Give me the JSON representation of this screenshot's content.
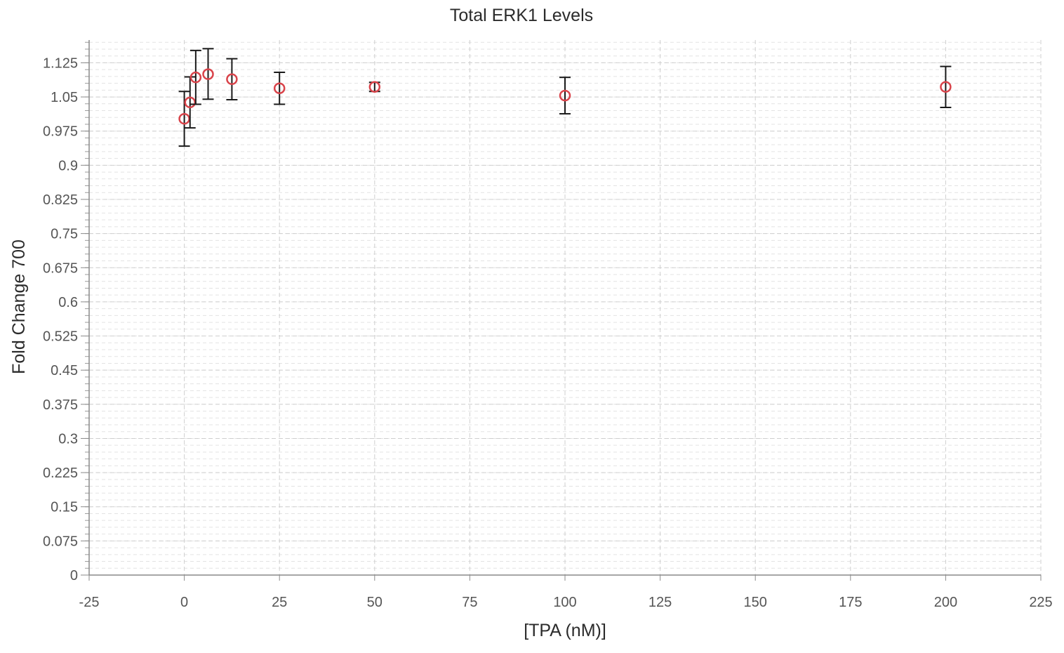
{
  "chart_data": {
    "type": "scatter",
    "title": "Total ERK1 Levels",
    "xlabel": "[TPA (nM)]",
    "ylabel": "Fold Change 700",
    "xlim": [
      -25,
      225
    ],
    "ylim": [
      0,
      1.175
    ],
    "x_ticks": [
      "-25",
      "0",
      "25",
      "50",
      "75",
      "100",
      "125",
      "150",
      "175",
      "200",
      "225"
    ],
    "x_tick_values": [
      -25,
      0,
      25,
      50,
      75,
      100,
      125,
      150,
      175,
      200,
      225
    ],
    "y_ticks": [
      "0",
      "0.075",
      "0.15",
      "0.225",
      "0.3",
      "0.375",
      "0.45",
      "0.525",
      "0.6",
      "0.675",
      "0.75",
      "0.825",
      "0.9",
      "0.975",
      "1.05",
      "1.125"
    ],
    "y_tick_values": [
      0,
      0.075,
      0.15,
      0.225,
      0.3,
      0.375,
      0.45,
      0.525,
      0.6,
      0.675,
      0.75,
      0.825,
      0.9,
      0.975,
      1.05,
      1.125
    ],
    "grid": true,
    "marker_color": "#d9434a",
    "errorbar_color": "#1a1a1a",
    "series": [
      {
        "points": [
          {
            "x": 0,
            "y": 1.002,
            "err_low": 0.942,
            "err_high": 1.062
          },
          {
            "x": 1.5,
            "y": 1.038,
            "err_low": 0.982,
            "err_high": 1.094
          },
          {
            "x": 3,
            "y": 1.093,
            "err_low": 1.034,
            "err_high": 1.152
          },
          {
            "x": 6.25,
            "y": 1.1,
            "err_low": 1.045,
            "err_high": 1.156
          },
          {
            "x": 12.5,
            "y": 1.089,
            "err_low": 1.044,
            "err_high": 1.134
          },
          {
            "x": 25,
            "y": 1.069,
            "err_low": 1.034,
            "err_high": 1.104
          },
          {
            "x": 50,
            "y": 1.072,
            "err_low": 1.062,
            "err_high": 1.082
          },
          {
            "x": 100,
            "y": 1.053,
            "err_low": 1.013,
            "err_high": 1.093
          },
          {
            "x": 200,
            "y": 1.072,
            "err_low": 1.027,
            "err_high": 1.117
          }
        ]
      }
    ]
  }
}
